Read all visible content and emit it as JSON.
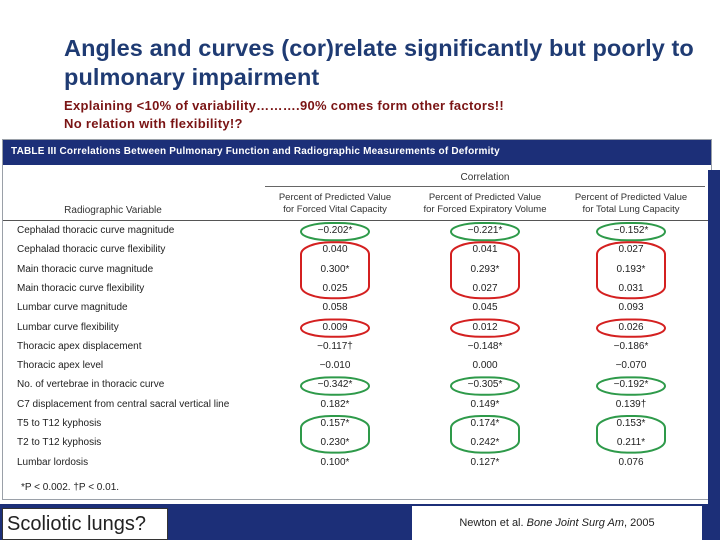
{
  "title": "Angles and curves (cor)relate significantly but poorly to pulmonary impairment",
  "subtitle_line1": "Explaining <10% of variability……….90% comes form other factors!!",
  "subtitle_line2": "No relation with flexibility!?",
  "table": {
    "title": "TABLE III Correlations Between Pulmonary Function and Radiographic Measurements of Deformity",
    "group_header": "Correlation",
    "row_header": "Radiographic Variable",
    "columns": [
      {
        "line1": "Percent of Predicted Value",
        "line2": "for Forced Vital Capacity"
      },
      {
        "line1": "Percent of Predicted Value",
        "line2": "for Forced Expiratory Volume"
      },
      {
        "line1": "Percent of Predicted Value",
        "line2": "for Total Lung Capacity"
      }
    ],
    "rows": [
      {
        "label": "Cephalad thoracic curve magnitude",
        "values": [
          "−0.202*",
          "−0.221*",
          "−0.152*"
        ],
        "circle": "green"
      },
      {
        "label": "Cephalad thoracic curve flexibility",
        "values": [
          "0.040",
          "0.041",
          "0.027"
        ],
        "circle": "red"
      },
      {
        "label": "Main thoracic curve magnitude",
        "values": [
          "0.300*",
          "0.293*",
          "0.193*"
        ],
        "circle": "red"
      },
      {
        "label": "Main thoracic curve flexibility",
        "values": [
          "0.025",
          "0.027",
          "0.031"
        ],
        "circle": "red"
      },
      {
        "label": "Lumbar curve magnitude",
        "values": [
          "0.058",
          "0.045",
          "0.093"
        ],
        "circle": "none"
      },
      {
        "label": "Lumbar curve flexibility",
        "values": [
          "0.009",
          "0.012",
          "0.026"
        ],
        "circle": "red"
      },
      {
        "label": "Thoracic apex displacement",
        "values": [
          "−0.117†",
          "−0.148*",
          "−0.186*"
        ],
        "circle": "none"
      },
      {
        "label": "Thoracic apex level",
        "values": [
          "−0.010",
          "0.000",
          "−0.070"
        ],
        "circle": "none"
      },
      {
        "label": "No. of vertebrae in thoracic curve",
        "values": [
          "−0.342*",
          "−0.305*",
          "−0.192*"
        ],
        "circle": "green"
      },
      {
        "label": "C7 displacement from central sacral vertical line",
        "values": [
          "0.182*",
          "0.149*",
          "0.139†"
        ],
        "circle": "none"
      },
      {
        "label": "T5 to T12 kyphosis",
        "values": [
          "0.157*",
          "0.174*",
          "0.153*"
        ],
        "circle": "green"
      },
      {
        "label": "T2 to T12 kyphosis",
        "values": [
          "0.230*",
          "0.242*",
          "0.211*"
        ],
        "circle": "green"
      },
      {
        "label": "Lumbar lordosis",
        "values": [
          "0.100*",
          "0.127*",
          "0.076"
        ],
        "circle": "none"
      }
    ],
    "footnote": "*P < 0.002. †P < 0.01."
  },
  "footer": {
    "left_label": "Scoliotic lungs?",
    "citation_authors": "Newton et al.",
    "citation_journal": "Bone Joint Surg Am",
    "citation_year": ", 2005"
  },
  "colors": {
    "navy": "#1c2f78",
    "title": "#1f3b73",
    "subtitle": "#7a1414",
    "green_circle": "#2e9a4a",
    "red_circle": "#d42020"
  }
}
